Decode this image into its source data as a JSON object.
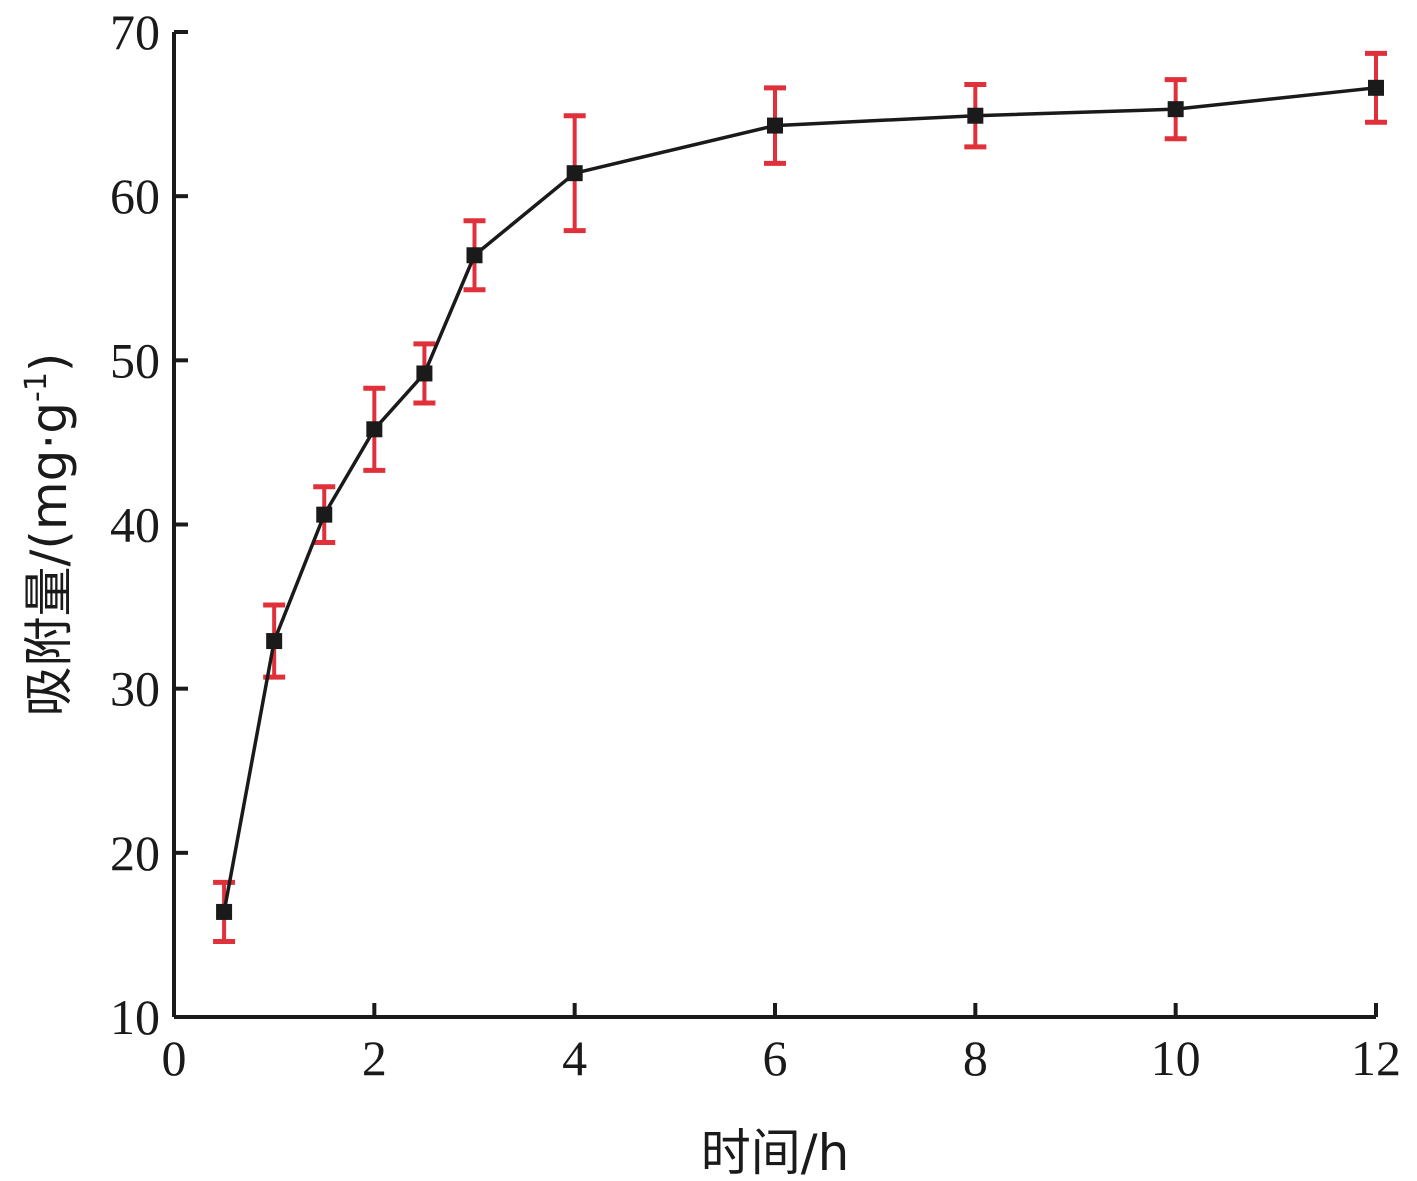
{
  "chart_data": {
    "type": "line",
    "title": "",
    "xlabel": "时间/h",
    "ylabel": "吸附量/(mg·g",
    "ylabel_sup": "-1",
    "ylabel_close": ")",
    "xlim": [
      0,
      12
    ],
    "ylim": [
      10,
      70
    ],
    "x_ticks": [
      0,
      2,
      4,
      6,
      8,
      10,
      12
    ],
    "y_ticks": [
      10,
      20,
      30,
      40,
      50,
      60,
      70
    ],
    "x_tick_labels": [
      "0",
      "2",
      "4",
      "6",
      "8",
      "10",
      "12"
    ],
    "y_tick_labels": [
      "10",
      "20",
      "30",
      "40",
      "50",
      "60",
      "70"
    ],
    "grid": false,
    "legend": "none",
    "series": [
      {
        "x": [
          0.5,
          1,
          1.5,
          2,
          2.5,
          3,
          4,
          6,
          8,
          10,
          12
        ],
        "values": [
          16.4,
          32.9,
          40.6,
          45.8,
          49.2,
          56.4,
          61.4,
          64.3,
          64.9,
          65.3,
          66.6
        ],
        "error": [
          1.8,
          2.2,
          1.7,
          2.5,
          1.8,
          2.1,
          3.5,
          2.3,
          1.9,
          1.8,
          2.1
        ],
        "line_color": "#1a1a1a",
        "error_color": "#e0303a"
      }
    ]
  }
}
